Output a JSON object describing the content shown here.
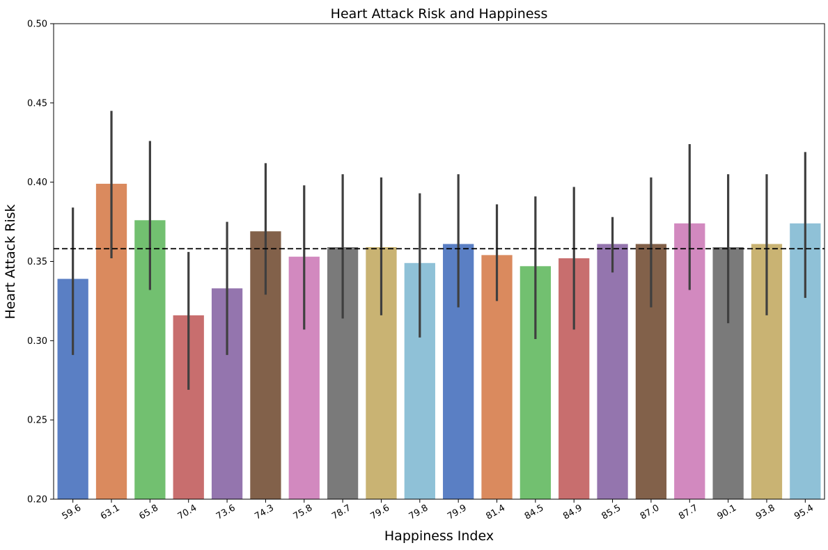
{
  "chart_data": {
    "type": "bar",
    "title": "Heart Attack Risk and Happiness",
    "xlabel": "Happiness Index",
    "ylabel": "Heart Attack Risk",
    "ylim": [
      0.2,
      0.5
    ],
    "yticks": [
      "0.20",
      "0.25",
      "0.30",
      "0.35",
      "0.40",
      "0.45",
      "0.50"
    ],
    "categories": [
      "59.6",
      "63.1",
      "65.8",
      "70.4",
      "73.6",
      "74.3",
      "75.8",
      "78.7",
      "79.6",
      "79.8",
      "79.9",
      "81.4",
      "84.5",
      "84.9",
      "85.5",
      "87.0",
      "87.7",
      "90.1",
      "93.8",
      "95.4"
    ],
    "values": [
      0.339,
      0.399,
      0.376,
      0.316,
      0.333,
      0.369,
      0.353,
      0.359,
      0.359,
      0.349,
      0.361,
      0.354,
      0.347,
      0.352,
      0.361,
      0.361,
      0.374,
      0.359,
      0.361,
      0.374
    ],
    "ci_low": [
      0.291,
      0.352,
      0.332,
      0.269,
      0.291,
      0.329,
      0.307,
      0.314,
      0.316,
      0.302,
      0.321,
      0.325,
      0.301,
      0.307,
      0.343,
      0.321,
      0.332,
      0.311,
      0.316,
      0.327
    ],
    "ci_high": [
      0.384,
      0.445,
      0.426,
      0.356,
      0.375,
      0.412,
      0.398,
      0.405,
      0.403,
      0.393,
      0.405,
      0.386,
      0.391,
      0.397,
      0.378,
      0.403,
      0.424,
      0.405,
      0.405,
      0.419
    ],
    "mean_line": 0.358,
    "grid": false,
    "colors": [
      "#5a7fc4",
      "#da8a5e",
      "#72c070",
      "#c86e6e",
      "#9475ae",
      "#82614a",
      "#d289bf",
      "#7a7a7a",
      "#c9b373",
      "#8fc1d7"
    ],
    "error_bar_color": "#3f3f3f",
    "mean_line_color": "#000000"
  }
}
